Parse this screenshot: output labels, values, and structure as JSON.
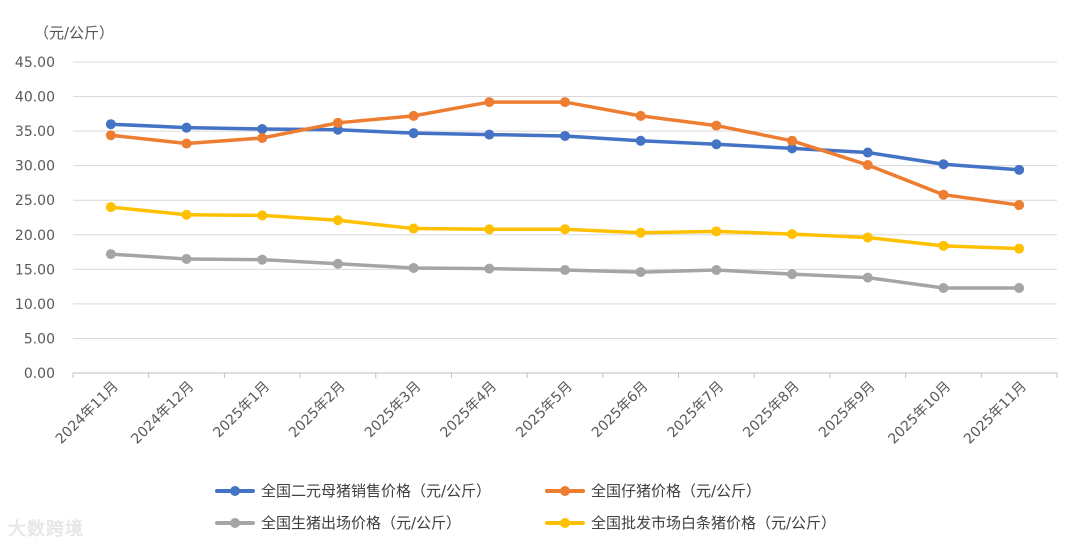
{
  "chart_data": {
    "type": "line",
    "unit_label": "（元/公斤）",
    "categories": [
      "2024年11月",
      "2024年12月",
      "2025年1月",
      "2025年2月",
      "2025年3月",
      "2025年4月",
      "2025年5月",
      "2025年6月",
      "2025年7月",
      "2025年8月",
      "2025年9月",
      "2025年10月",
      "2025年11月"
    ],
    "ylim": [
      0,
      45
    ],
    "yticks": [
      "0.00",
      "5.00",
      "10.00",
      "15.00",
      "20.00",
      "25.00",
      "30.00",
      "35.00",
      "40.00",
      "45.00"
    ],
    "grid": true,
    "legend_position": "bottom",
    "series": [
      {
        "name": "全国二元母猪销售价格（元/公斤）",
        "color": "#4472C4",
        "values": [
          36.0,
          35.5,
          35.3,
          35.2,
          34.7,
          34.5,
          34.3,
          33.6,
          33.1,
          32.5,
          31.9,
          30.2,
          29.4
        ]
      },
      {
        "name": "全国仔猪价格（元/公斤）",
        "color": "#ED7D31",
        "values": [
          34.4,
          33.2,
          34.0,
          36.2,
          37.2,
          39.2,
          39.2,
          37.2,
          35.8,
          33.6,
          30.1,
          25.8,
          24.3
        ]
      },
      {
        "name": "全国生猪出场价格（元/公斤）",
        "color": "#A5A5A5",
        "values": [
          17.2,
          16.5,
          16.4,
          15.8,
          15.2,
          15.1,
          14.9,
          14.6,
          14.9,
          14.3,
          13.8,
          12.3,
          12.3
        ]
      },
      {
        "name": "全国批发市场白条猪价格（元/公斤）",
        "color": "#FFC000",
        "values": [
          24.0,
          22.9,
          22.8,
          22.1,
          20.9,
          20.8,
          20.8,
          20.3,
          20.5,
          20.1,
          19.6,
          18.4,
          18.0
        ]
      }
    ]
  },
  "watermark": "大数跨境"
}
